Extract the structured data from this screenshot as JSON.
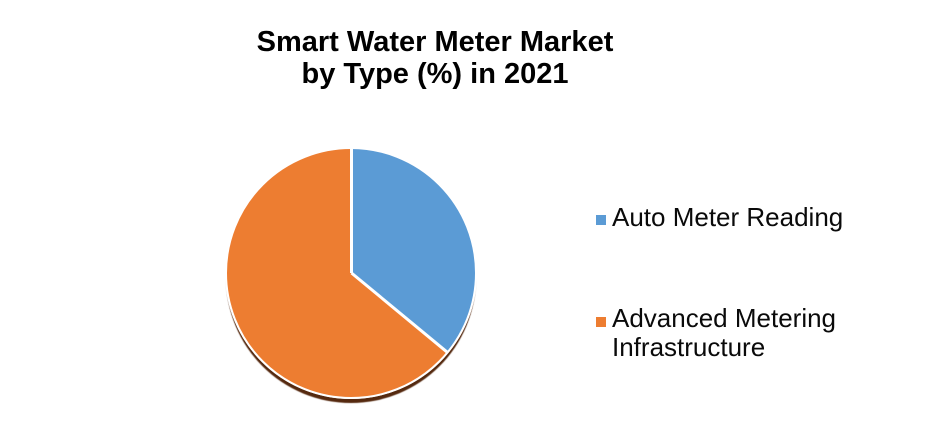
{
  "title": {
    "line1": "Smart Water Meter Market",
    "line2": "by Type (%) in 2021"
  },
  "chart_data": {
    "type": "pie",
    "title": "Smart Water Meter Market by Type (%) in 2021",
    "unit": "%",
    "labels": [
      "Auto Meter Reading",
      "Advanced Metering Infrastructure"
    ],
    "values": [
      36,
      64
    ],
    "colors": [
      "#5B9BD5",
      "#ED7D31"
    ],
    "slice_border_color": "#FFFFFF",
    "shadow_color": "#55290F",
    "start_angle_deg": 0,
    "direction": "clockwise",
    "legend_position": "right",
    "data_labels_shown": false
  }
}
